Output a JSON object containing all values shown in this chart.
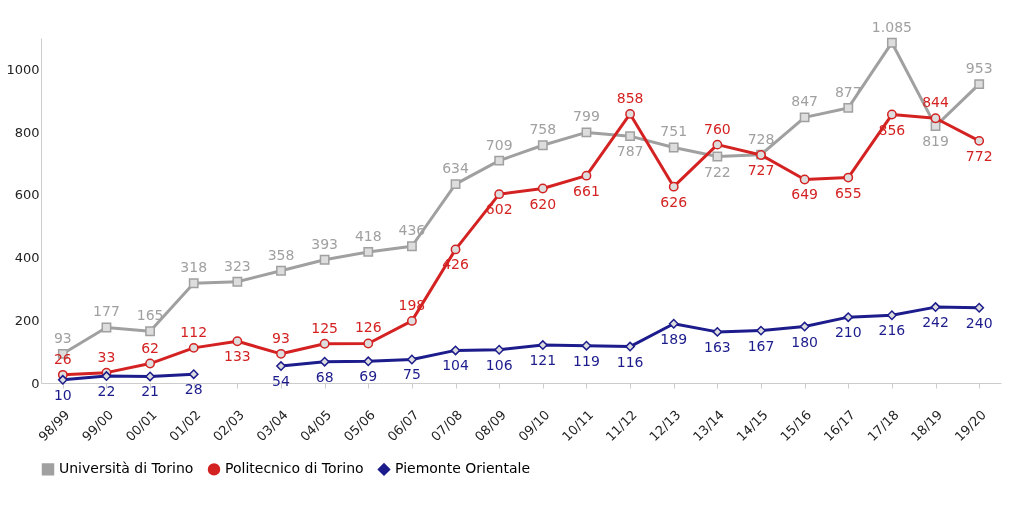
{
  "chart_data": {
    "type": "line",
    "categories": [
      "98/99",
      "99/00",
      "00/01",
      "01/02",
      "02/03",
      "03/04",
      "04/05",
      "05/06",
      "06/07",
      "07/08",
      "08/09",
      "09/10",
      "10/11",
      "11/12",
      "12/13",
      "13/14",
      "14/15",
      "15/16",
      "16/17",
      "17/18",
      "18/19",
      "19/20"
    ],
    "series": [
      {
        "name": "Università di Torino",
        "color": "#a0a0a0",
        "marker": "square",
        "values": [
          93,
          177,
          165,
          318,
          323,
          358,
          393,
          418,
          436,
          634,
          709,
          758,
          799,
          787,
          751,
          722,
          728,
          847,
          877,
          1085,
          819,
          953
        ],
        "value_labels": [
          "93",
          "177",
          "165",
          "318",
          "323",
          "358",
          "393",
          "418",
          "436",
          "634",
          "709",
          "758",
          "799",
          "787",
          "751",
          "722",
          "728",
          "847",
          "877",
          "1.085",
          "819",
          "953"
        ]
      },
      {
        "name": "Politecnico di Torino",
        "color": "#d42222",
        "marker": "circle",
        "values": [
          26,
          33,
          62,
          112,
          133,
          93,
          125,
          126,
          198,
          426,
          602,
          620,
          661,
          858,
          626,
          760,
          727,
          649,
          655,
          856,
          844,
          772
        ],
        "value_labels": [
          "26",
          "33",
          "62",
          "112",
          "133",
          "93",
          "125",
          "126",
          "198",
          "426",
          "602",
          "620",
          "661",
          "858",
          "626",
          "760",
          "727",
          "649",
          "655",
          "856",
          "844",
          "772"
        ]
      },
      {
        "name": "Piemonte Orientale",
        "color": "#1c1c8c",
        "marker": "diamond",
        "values": [
          10,
          22,
          21,
          28,
          null,
          54,
          68,
          69,
          75,
          104,
          106,
          121,
          119,
          116,
          189,
          163,
          167,
          180,
          210,
          216,
          242,
          240
        ],
        "value_labels": [
          "10",
          "22",
          "21",
          "28",
          null,
          "54",
          "68",
          "69",
          "75",
          "104",
          "106",
          "121",
          "119",
          "116",
          "189",
          "163",
          "167",
          "180",
          "210",
          "216",
          "242",
          "240"
        ]
      }
    ],
    "ylim": [
      0,
      1100
    ],
    "yticks": [
      0,
      200,
      400,
      600,
      800,
      1000
    ],
    "grid": false,
    "legend": "bottom",
    "line_style": "solid"
  }
}
